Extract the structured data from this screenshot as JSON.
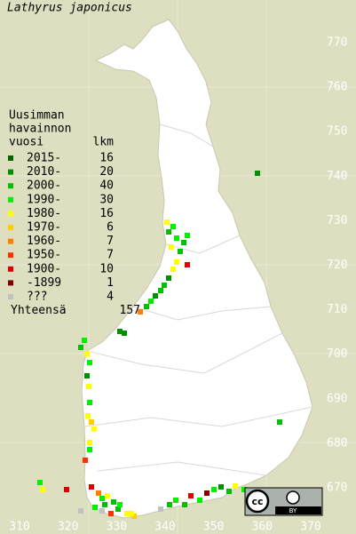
{
  "title": "Lathyrus japonicus",
  "legend": {
    "heading": [
      "Uusimman",
      "havainnon"
    ],
    "columns": [
      "vuosi",
      "lkm"
    ],
    "items": [
      {
        "label": "2015-",
        "count": 16,
        "color": "#006400"
      },
      {
        "label": "2010-",
        "count": 20,
        "color": "#009000"
      },
      {
        "label": "2000-",
        "count": 40,
        "color": "#00c000"
      },
      {
        "label": "1990-",
        "count": 30,
        "color": "#00ee00"
      },
      {
        "label": "1980-",
        "count": 16,
        "color": "#ffff00"
      },
      {
        "label": "1970-",
        "count": 6,
        "color": "#ffcc00"
      },
      {
        "label": "1960-",
        "count": 7,
        "color": "#ff8000"
      },
      {
        "label": "1950-",
        "count": 7,
        "color": "#ff3000"
      },
      {
        "label": "1900-",
        "count": 10,
        "color": "#dd0000"
      },
      {
        "label": "-1899",
        "count": 1,
        "color": "#800000"
      },
      {
        "label": "???",
        "count": 4,
        "color": "#c0c0c0"
      }
    ],
    "total": {
      "label": "Yhteensä",
      "count": 157
    }
  },
  "x_ticks": [
    310,
    320,
    330,
    340,
    350,
    360,
    370
  ],
  "y_ticks": [
    670,
    680,
    690,
    700,
    710,
    720,
    730,
    740,
    750,
    760,
    770
  ],
  "license": {
    "symbol": "cc",
    "label": "BY"
  }
}
